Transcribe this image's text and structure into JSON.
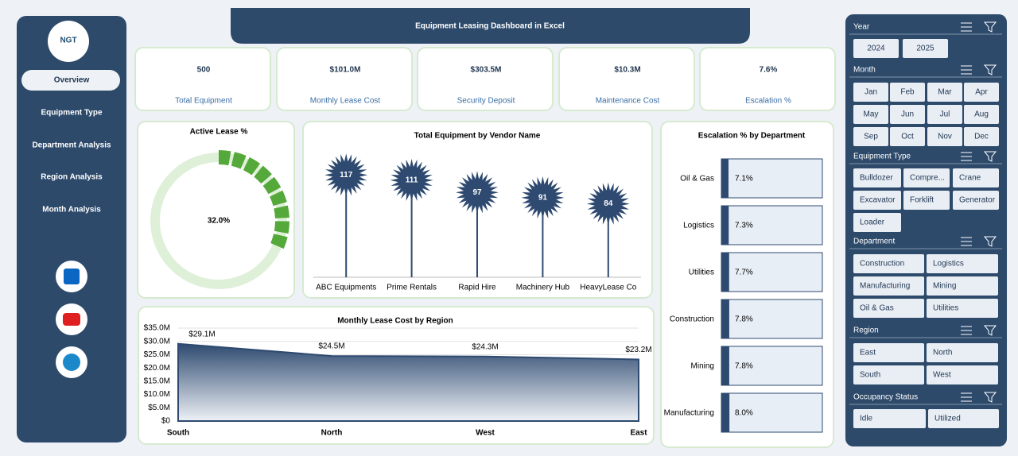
{
  "header": {
    "title": "Equipment Leasing Dashboard in Excel"
  },
  "sidebar": {
    "logo": "NGT",
    "nav": [
      "Overview",
      "Equipment Type",
      "Department Analysis",
      "Region Analysis",
      "Month Analysis"
    ]
  },
  "kpis": [
    {
      "value": "500",
      "label": "Total Equipment"
    },
    {
      "value": "$101.0M",
      "label": "Monthly Lease Cost"
    },
    {
      "value": "$303.5M",
      "label": "Security Deposit"
    },
    {
      "value": "$10.3M",
      "label": "Maintenance Cost"
    },
    {
      "value": "7.6%",
      "label": "Escalation %"
    }
  ],
  "chart_data": [
    {
      "type": "donut",
      "title": "Active Lease %",
      "values": [
        32
      ],
      "value_labels": [
        "32.0%"
      ],
      "ylim": [
        0,
        100
      ],
      "color": "#55a93a"
    },
    {
      "type": "lollipop",
      "title": "Total Equipment by Vendor Name",
      "categories": [
        "ABC Equipments",
        "Prime Rentals",
        "Rapid Hire",
        "Machinery Hub",
        "HeavyLease Co"
      ],
      "values": [
        117,
        111,
        97,
        91,
        84
      ],
      "ylim": [
        0,
        130
      ],
      "color": "#2e4a70"
    },
    {
      "type": "area",
      "title": "Monthly Lease Cost by Region",
      "categories": [
        "South",
        "North",
        "West",
        "East"
      ],
      "values": [
        29.1,
        24.5,
        24.3,
        23.2
      ],
      "value_labels": [
        "$29.1M",
        "$24.5M",
        "$24.3M",
        "$23.2M"
      ],
      "ylim": [
        0,
        35
      ],
      "yticks": [
        {
          "value": 0,
          "label": "$0"
        },
        {
          "value": 5,
          "label": "$5.0M"
        },
        {
          "value": 10,
          "label": "$10.0M"
        },
        {
          "value": 15,
          "label": "$15.0M"
        },
        {
          "value": 20,
          "label": "$20.0M"
        },
        {
          "value": 25,
          "label": "$25.0M"
        },
        {
          "value": 30,
          "label": "$30.0M"
        },
        {
          "value": 35,
          "label": "$35.0M"
        }
      ],
      "grid": true,
      "color": "#2e4a70"
    },
    {
      "type": "hbar",
      "title": "Escalation % by Department",
      "categories": [
        "Oil & Gas",
        "Logistics",
        "Utilities",
        "Construction",
        "Mining",
        "Manufacturing"
      ],
      "values": [
        7.1,
        7.3,
        7.7,
        7.8,
        7.8,
        8.0
      ],
      "value_labels": [
        "7.1%",
        "7.3%",
        "7.7%",
        "7.8%",
        "7.8%",
        "8.0%"
      ],
      "xlim": [
        0,
        100
      ],
      "color": "#2e4a70"
    }
  ],
  "slicers": [
    {
      "title": "Year",
      "items": [
        "2024",
        "2025"
      ]
    },
    {
      "title": "Month",
      "items": [
        "Jan",
        "Feb",
        "Mar",
        "Apr",
        "May",
        "Jun",
        "Jul",
        "Aug",
        "Sep",
        "Oct",
        "Nov",
        "Dec"
      ]
    },
    {
      "title": "Equipment Type",
      "items": [
        "Bulldozer",
        "Compre...",
        "Crane",
        "Excavator",
        "Forklift",
        "Generator",
        "Loader"
      ]
    },
    {
      "title": "Department",
      "items": [
        "Construction",
        "Logistics",
        "Manufacturing",
        "Mining",
        "Oil & Gas",
        "Utilities"
      ]
    },
    {
      "title": "Region",
      "items": [
        "East",
        "North",
        "South",
        "West"
      ]
    },
    {
      "title": "Occupancy Status",
      "items": [
        "Idle",
        "Utilized"
      ]
    }
  ]
}
